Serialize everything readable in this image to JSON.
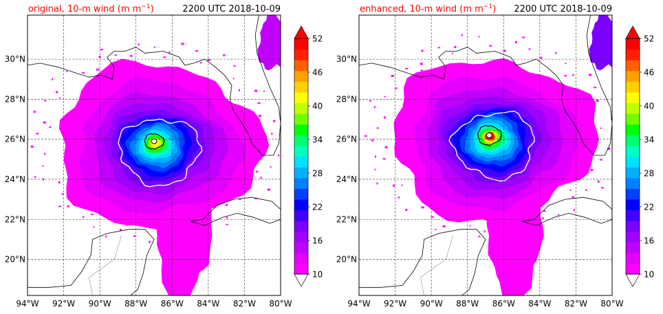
{
  "panels": [
    {
      "title_left": "original, 10-m wind (m m",
      "title_sup": "−1",
      "title_close": ")",
      "title_right": "2200 UTC 2018-10-09",
      "eye": {
        "lon": -87.0,
        "lat": 25.9
      },
      "colorbar_ticks": [
        "52",
        "46",
        "40",
        "34",
        "28",
        "22",
        "16",
        "10"
      ],
      "lon_labels": [
        "94°W",
        "92°W",
        "90°W",
        "88°W",
        "86°W",
        "84°W",
        "82°W",
        "80°W"
      ],
      "lat_labels": [
        "30°N",
        "28°N",
        "26°N",
        "24°N",
        "22°N",
        "20°N"
      ]
    },
    {
      "title_left": "enhanced, 10-m wind (m m",
      "title_sup": "−1",
      "title_close": ")",
      "title_right": "2200 UTC 2018-10-09",
      "eye": {
        "lon": -86.8,
        "lat": 26.2
      },
      "colorbar_ticks": [
        "52",
        "46",
        "40",
        "34",
        "28",
        "22",
        "16",
        "10"
      ],
      "lon_labels": [
        "94°W",
        "92°W",
        "90°W",
        "88°W",
        "86°W",
        "84°W",
        "82°W",
        "80°W"
      ],
      "lat_labels": [
        "30°N",
        "28°N",
        "26°N",
        "24°N",
        "22°N",
        "20°N"
      ]
    }
  ],
  "colormap": [
    "#ff00ff",
    "#e400ff",
    "#c000ff",
    "#a000ff",
    "#7a00ff",
    "#4000ff",
    "#0000ff",
    "#0040ff",
    "#0080ff",
    "#00b0ff",
    "#00e0ff",
    "#00ffc0",
    "#00ff70",
    "#00ff00",
    "#70ff00",
    "#c0ff00",
    "#ffff00",
    "#ffd000",
    "#ffa000",
    "#ff6000",
    "#ff2000",
    "#ff0000"
  ],
  "map_extent": {
    "lon": [
      -94,
      -80
    ],
    "lat": [
      18.2,
      32.2
    ]
  },
  "colorbar_range": [
    10,
    52
  ]
}
